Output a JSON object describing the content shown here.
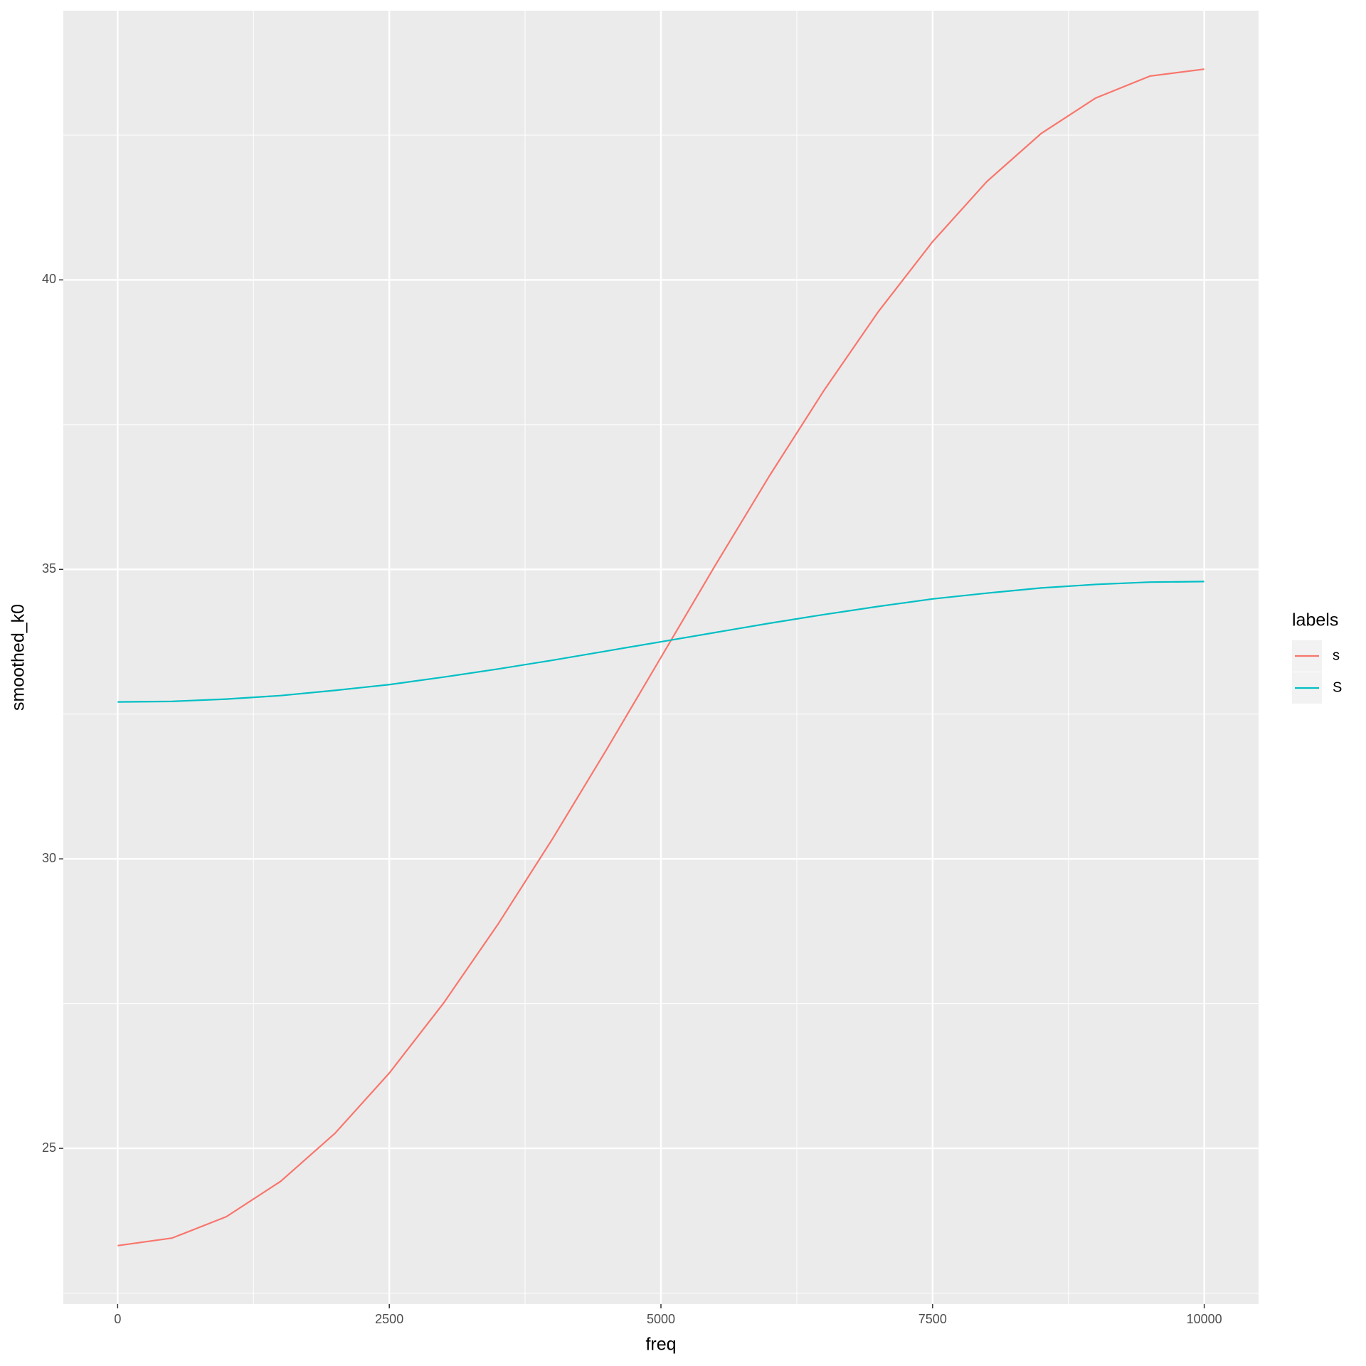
{
  "chart_data": {
    "type": "line",
    "x_label": "freq",
    "y_label": "smoothed_k0",
    "legend_title": "labels",
    "x": [
      0,
      500,
      1000,
      1500,
      2000,
      2500,
      3000,
      3500,
      4000,
      4500,
      5000,
      5500,
      6000,
      6500,
      7000,
      7500,
      8000,
      8500,
      9000,
      9500,
      10000
    ],
    "series": [
      {
        "name": "s",
        "color": "#F8766D",
        "values": [
          23.32,
          23.45,
          23.82,
          24.43,
          25.26,
          26.3,
          27.51,
          28.87,
          30.34,
          31.89,
          33.48,
          35.07,
          36.62,
          38.09,
          39.45,
          40.66,
          41.7,
          42.53,
          43.14,
          43.52,
          43.64
        ]
      },
      {
        "name": "S",
        "color": "#00BFC4",
        "values": [
          32.71,
          32.72,
          32.76,
          32.82,
          32.91,
          33.01,
          33.14,
          33.28,
          33.43,
          33.59,
          33.75,
          33.91,
          34.07,
          34.22,
          34.36,
          34.49,
          34.59,
          34.68,
          34.74,
          34.78,
          34.79
        ]
      }
    ],
    "xlim": [
      -500,
      10500
    ],
    "ylim": [
      22.31,
      44.65
    ],
    "xticks": [
      0,
      2500,
      5000,
      7500,
      10000
    ],
    "yticks": [
      25,
      30,
      35,
      40
    ],
    "grid": true,
    "legend_position": "right"
  }
}
